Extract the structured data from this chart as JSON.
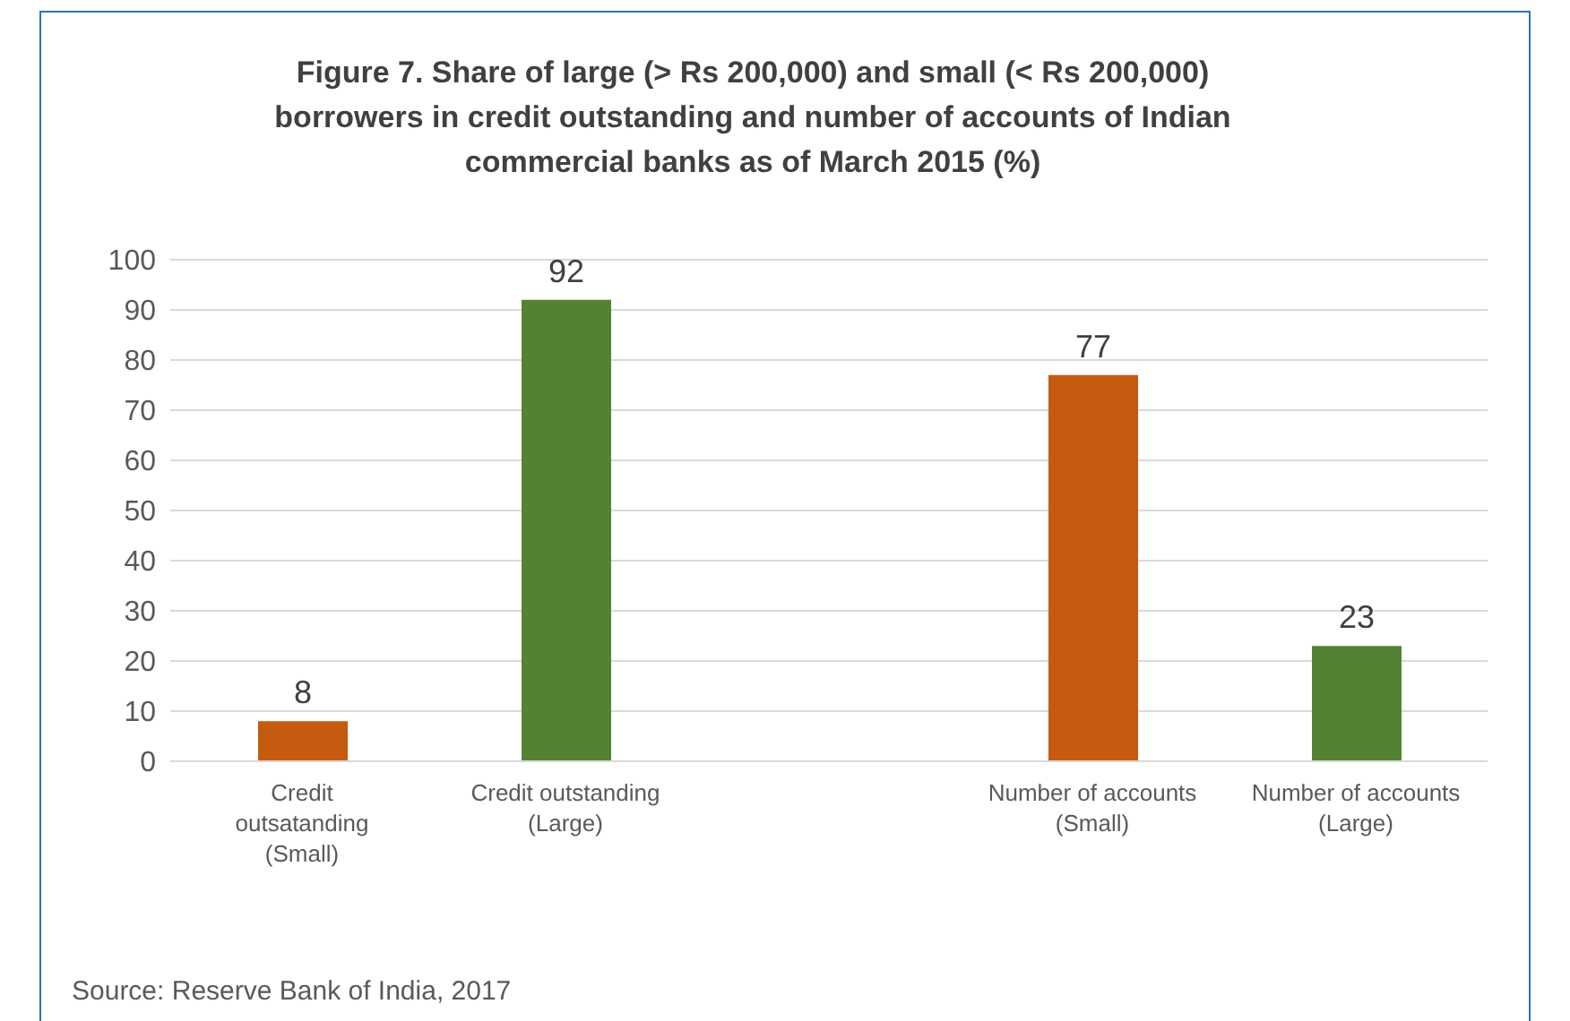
{
  "chart_data": {
    "type": "bar",
    "title": "Figure 7.  Share of large (> Rs 200,000) and small (< Rs 200,000) borrowers  in credit outstanding and number of accounts of Indian commercial banks as of March 2015 (%)",
    "categories": [
      "Credit outsatanding (Small)",
      "Credit outstanding (Large)",
      null,
      "Number of accounts (Small)",
      "Number of accounts (Large)"
    ],
    "values": [
      8,
      92,
      null,
      77,
      23
    ],
    "colors": [
      "#c55a11",
      "#548235",
      "#c55a11",
      "#c55a11",
      "#548235"
    ],
    "ylim": [
      0,
      100
    ],
    "yticks": [
      0,
      10,
      20,
      30,
      40,
      50,
      60,
      70,
      80,
      90,
      100
    ],
    "grid": "y",
    "data_labels": true,
    "legend": false,
    "annotations": [
      "Source:  Reserve Bank of India, 2017"
    ]
  }
}
